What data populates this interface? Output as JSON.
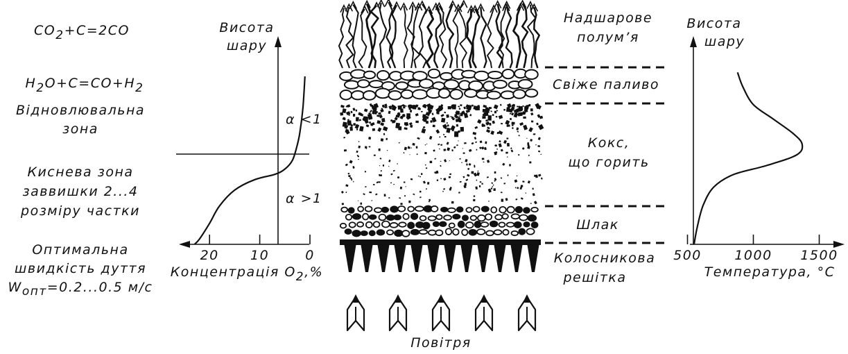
{
  "reactions": {
    "r1": {
      "a": "CO",
      "sub": "2",
      "b": "+C=2CO"
    },
    "r2": {
      "a": "H",
      "sub1": "2",
      "b": "O+C=CO+H",
      "sub2": "2"
    }
  },
  "left_labels": {
    "reduction_zone": [
      "Відновлювальна",
      "зона"
    ],
    "oxygen_zone": [
      "Киснева зона",
      "заввишки 2...4",
      "розміру частки"
    ],
    "optimal_speed": [
      "Оптимальна",
      "швидкість дуття"
    ],
    "optimal_speed_formula": {
      "w": "W",
      "sub": "опт",
      "rest": "=0.2...0.5 м/с"
    }
  },
  "oxygen_chart": {
    "y_axis_title": [
      "Висота",
      "шару"
    ],
    "x_axis_title": {
      "text": "Концентрація O",
      "sub": "2",
      "unit": ",%"
    },
    "alpha_upper": "α <1",
    "alpha_lower": "α >1",
    "x_ticks": [
      "20",
      "10",
      "0"
    ]
  },
  "layer_labels": {
    "flame": [
      "Надшарове",
      "полум’я"
    ],
    "fresh_fuel": "Свіже паливо",
    "burning_coke": [
      "Кокс,",
      "що горить"
    ],
    "slag": "Шлак",
    "grate": [
      "Колосникова",
      "решітка"
    ],
    "air": "Повітря"
  },
  "temperature_chart": {
    "y_axis_title": [
      "Висота",
      "шару"
    ],
    "x_axis_title": "Температура, °С",
    "x_ticks": [
      "500",
      "1000",
      "1500"
    ]
  },
  "chart_data": [
    {
      "type": "line",
      "title": "",
      "xlabel": "Концентрація O2,%",
      "ylabel": "Висота шару",
      "xlim": [
        25,
        0
      ],
      "x_ticks": [
        20,
        10,
        0
      ],
      "series": [
        {
          "points": [
            [
              23,
              0.0
            ],
            [
              22,
              0.03
            ],
            [
              20,
              0.12
            ],
            [
              18,
              0.22
            ],
            [
              15,
              0.31
            ],
            [
              11,
              0.37
            ],
            [
              7,
              0.4
            ],
            [
              5,
              0.43
            ],
            [
              3.5,
              0.48
            ],
            [
              2.6,
              0.56
            ],
            [
              2.0,
              0.64
            ],
            [
              1.4,
              0.78
            ],
            [
              1.0,
              0.96
            ]
          ]
        }
      ]
    },
    {
      "type": "line",
      "title": "",
      "xlabel": "Температура, °С",
      "ylabel": "Висота шару",
      "xlim": [
        450,
        1650
      ],
      "x_ticks": [
        500,
        1000,
        1500
      ],
      "series": [
        {
          "points": [
            [
              550,
              0.0
            ],
            [
              575,
              0.1
            ],
            [
              620,
              0.22
            ],
            [
              700,
              0.32
            ],
            [
              850,
              0.39
            ],
            [
              1100,
              0.44
            ],
            [
              1330,
              0.5
            ],
            [
              1370,
              0.56
            ],
            [
              1300,
              0.62
            ],
            [
              1150,
              0.7
            ],
            [
              1000,
              0.78
            ],
            [
              920,
              0.88
            ],
            [
              880,
              0.96
            ]
          ]
        }
      ]
    }
  ]
}
